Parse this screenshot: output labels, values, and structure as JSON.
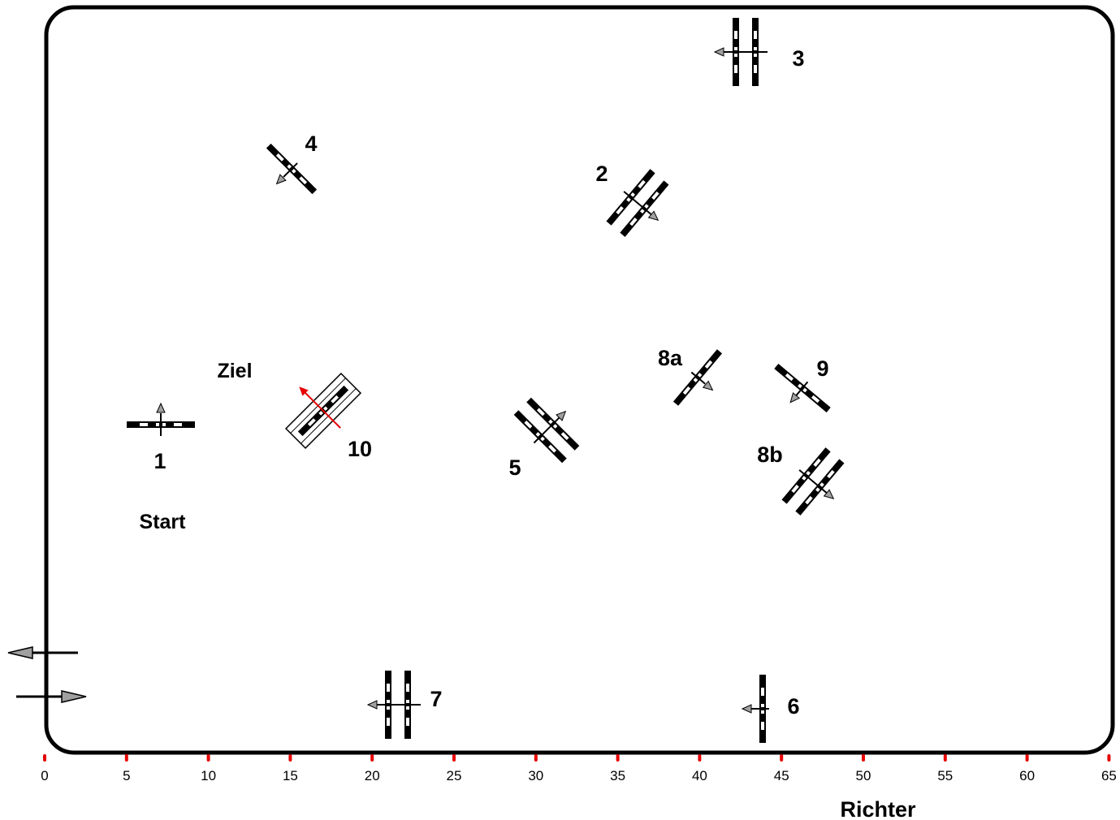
{
  "arena": {
    "border_color": "#000000",
    "axis_tick_color": "#e60000",
    "axis_ticks": [
      "0",
      "5",
      "10",
      "15",
      "20",
      "25",
      "30",
      "35",
      "40",
      "45",
      "50",
      "55",
      "60",
      "65"
    ],
    "judge_label": "Richter"
  },
  "labels": {
    "start": "Start",
    "finish": "Ziel"
  },
  "obstacles": [
    {
      "number": "1",
      "kind": "single"
    },
    {
      "number": "2",
      "kind": "oxer"
    },
    {
      "number": "3",
      "kind": "oxer"
    },
    {
      "number": "4",
      "kind": "single"
    },
    {
      "number": "5",
      "kind": "oxer"
    },
    {
      "number": "6",
      "kind": "single"
    },
    {
      "number": "7",
      "kind": "oxer"
    },
    {
      "number": "8a",
      "kind": "single"
    },
    {
      "number": "8b",
      "kind": "oxer"
    },
    {
      "number": "9",
      "kind": "single"
    },
    {
      "number": "10",
      "kind": "boxed-single",
      "arrow_color": "#e60000"
    }
  ],
  "entrance_arrows": [
    "exit-arrow-icon",
    "enter-arrow-icon"
  ]
}
